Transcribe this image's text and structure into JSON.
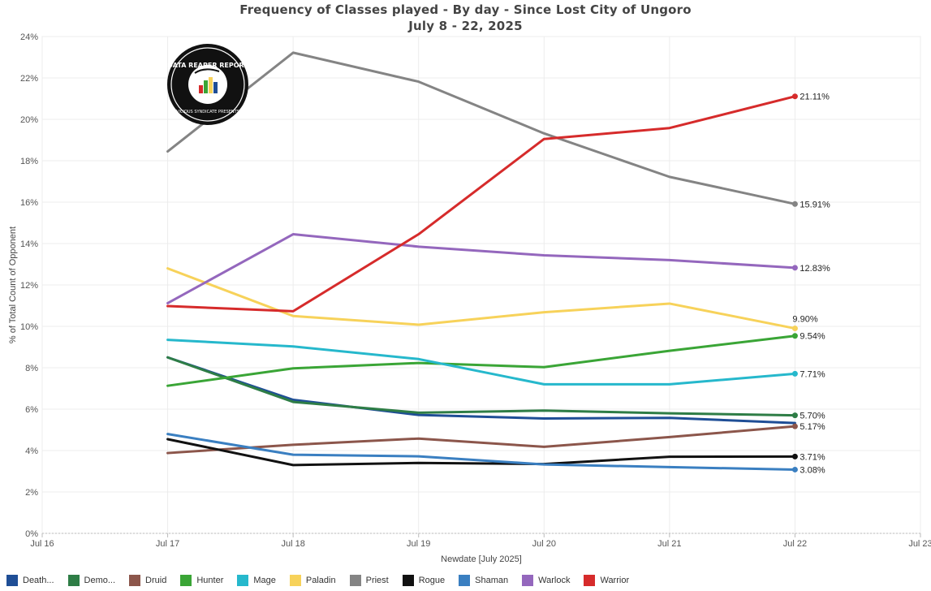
{
  "chart_data": {
    "type": "line",
    "title": "Frequency of Classes played - By day - Since Lost City of Ungoro",
    "subtitle": "July 8 - 22, 2025",
    "xlabel": "Newdate [July 2025]",
    "ylabel": "% of Total Count of Opponent",
    "x_ticks": [
      "Jul 16",
      "Jul 17",
      "Jul 18",
      "Jul 19",
      "Jul 20",
      "Jul 21",
      "Jul 22",
      "Jul 23"
    ],
    "x_range": [
      16,
      23
    ],
    "x": [
      17,
      18,
      19,
      20,
      21,
      22
    ],
    "y_ticks": [
      "0%",
      "2%",
      "4%",
      "6%",
      "8%",
      "10%",
      "12%",
      "14%",
      "16%",
      "18%",
      "20%",
      "22%",
      "24%"
    ],
    "ylim": [
      0,
      24
    ],
    "grid": true,
    "legend_position": "bottom",
    "series": [
      {
        "name": "Death...",
        "color": "#1f4e96",
        "values": [
          8.5,
          6.45,
          5.72,
          5.55,
          5.58,
          5.33
        ],
        "end_label": ""
      },
      {
        "name": "Demo...",
        "color": "#2e7d46",
        "values": [
          8.5,
          6.35,
          5.83,
          5.93,
          5.8,
          5.7
        ],
        "end_label": "5.70%"
      },
      {
        "name": "Druid",
        "color": "#8c564b",
        "values": [
          3.88,
          4.28,
          4.58,
          4.18,
          4.65,
          5.17
        ],
        "end_label": "5.17%"
      },
      {
        "name": "Hunter",
        "color": "#3aa536",
        "values": [
          7.13,
          7.97,
          8.23,
          8.03,
          8.82,
          9.54
        ],
        "end_label": "9.54%"
      },
      {
        "name": "Mage",
        "color": "#26b8cc",
        "values": [
          9.35,
          9.03,
          8.42,
          7.2,
          7.2,
          7.71
        ],
        "end_label": "7.71%"
      },
      {
        "name": "Paladin",
        "color": "#f7d25a",
        "values": [
          12.8,
          10.5,
          10.08,
          10.68,
          11.1,
          9.9
        ],
        "end_label": "9.90%"
      },
      {
        "name": "Priest",
        "color": "#848484",
        "values": [
          18.45,
          23.22,
          21.82,
          19.32,
          17.22,
          15.91
        ],
        "end_label": "15.91%"
      },
      {
        "name": "Rogue",
        "color": "#111111",
        "values": [
          4.55,
          3.3,
          3.4,
          3.35,
          3.7,
          3.71
        ],
        "end_label": "3.71%"
      },
      {
        "name": "Shaman",
        "color": "#3a7fc1",
        "values": [
          4.8,
          3.8,
          3.72,
          3.33,
          3.2,
          3.08
        ],
        "end_label": "3.08%"
      },
      {
        "name": "Warlock",
        "color": "#9467bd",
        "values": [
          11.12,
          14.45,
          13.85,
          13.43,
          13.2,
          12.83
        ],
        "end_label": "12.83%"
      },
      {
        "name": "Warrior",
        "color": "#d62b2b",
        "values": [
          10.98,
          10.73,
          14.45,
          19.05,
          19.58,
          21.11
        ],
        "end_label": "21.11%"
      }
    ]
  },
  "logo": {
    "text_top": "DATA REAPER REPORT",
    "text_bottom": "VICIOUS SYNDICATE PRESENTS"
  }
}
